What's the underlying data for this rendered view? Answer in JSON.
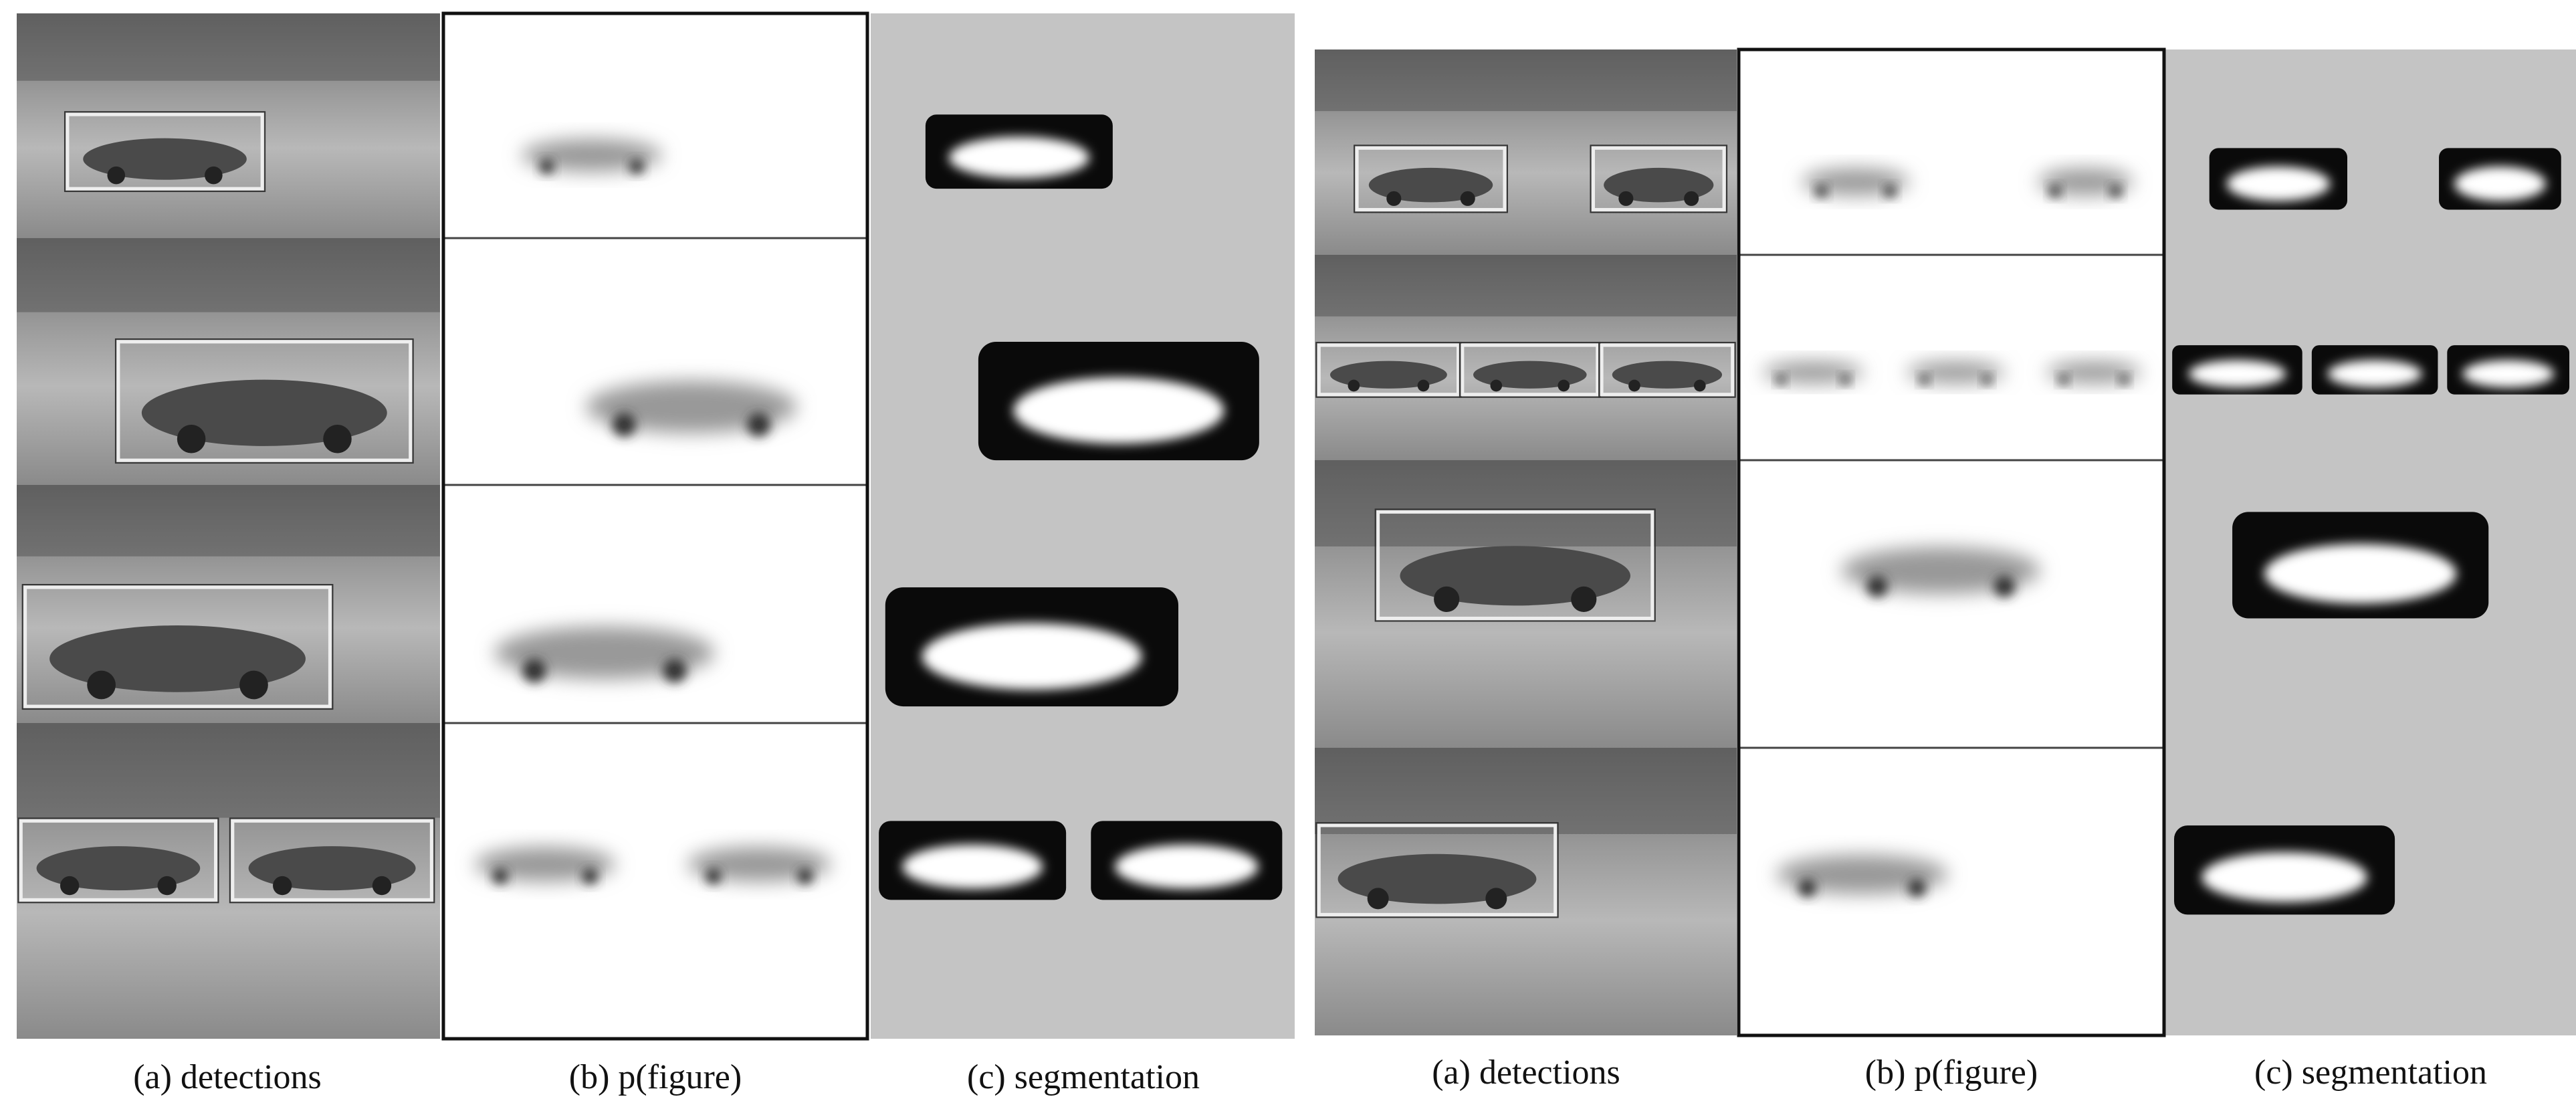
{
  "panels": [
    {
      "captions": [
        "(a) detections",
        "(b) p(figure)",
        "(c) segmentation"
      ]
    },
    {
      "captions": [
        "(a) detections",
        "(b) p(figure)",
        "(c) segmentation"
      ]
    }
  ]
}
